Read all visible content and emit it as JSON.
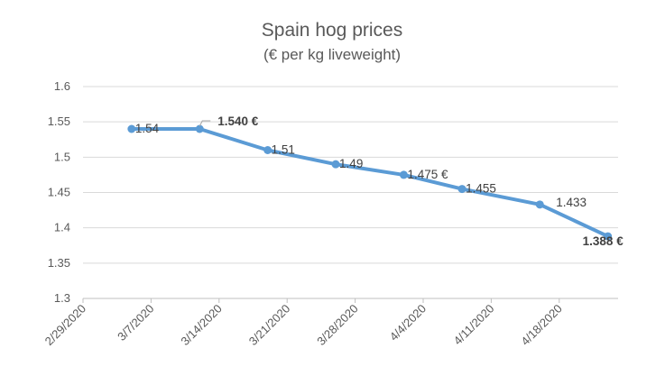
{
  "chart_data": {
    "type": "line",
    "title": "Spain hog prices",
    "subtitle": "(€ per kg liveweight)",
    "xlabel": "",
    "ylabel": "",
    "ylim": [
      1.3,
      1.6
    ],
    "yticks": [
      "1.6",
      "1.55",
      "1.5",
      "1.45",
      "1.4",
      "1.35",
      "1.3"
    ],
    "ytick_values": [
      1.6,
      1.55,
      1.5,
      1.45,
      1.4,
      1.35,
      1.3
    ],
    "xticks": [
      "2/29/2020",
      "3/7/2020",
      "3/14/2020",
      "3/21/2020",
      "3/28/2020",
      "4/4/2020",
      "4/11/2020",
      "4/18/2020"
    ],
    "xlim_days": [
      0,
      56
    ],
    "grid": true,
    "legend": "none",
    "series": [
      {
        "name": "Spain hog prices",
        "color": "#5B9BD5",
        "x_days_from_2020_02_29": [
          5,
          12,
          19,
          26,
          33,
          39,
          47,
          54
        ],
        "values": [
          1.54,
          1.54,
          1.51,
          1.49,
          1.475,
          1.455,
          1.433,
          1.388
        ],
        "labels": [
          "1.54",
          "1.540 €",
          "1.51",
          "1.49",
          "1.475 €",
          "1.455",
          "1.433",
          "1.388 €"
        ]
      }
    ],
    "highlight_color": "#FF0000"
  }
}
